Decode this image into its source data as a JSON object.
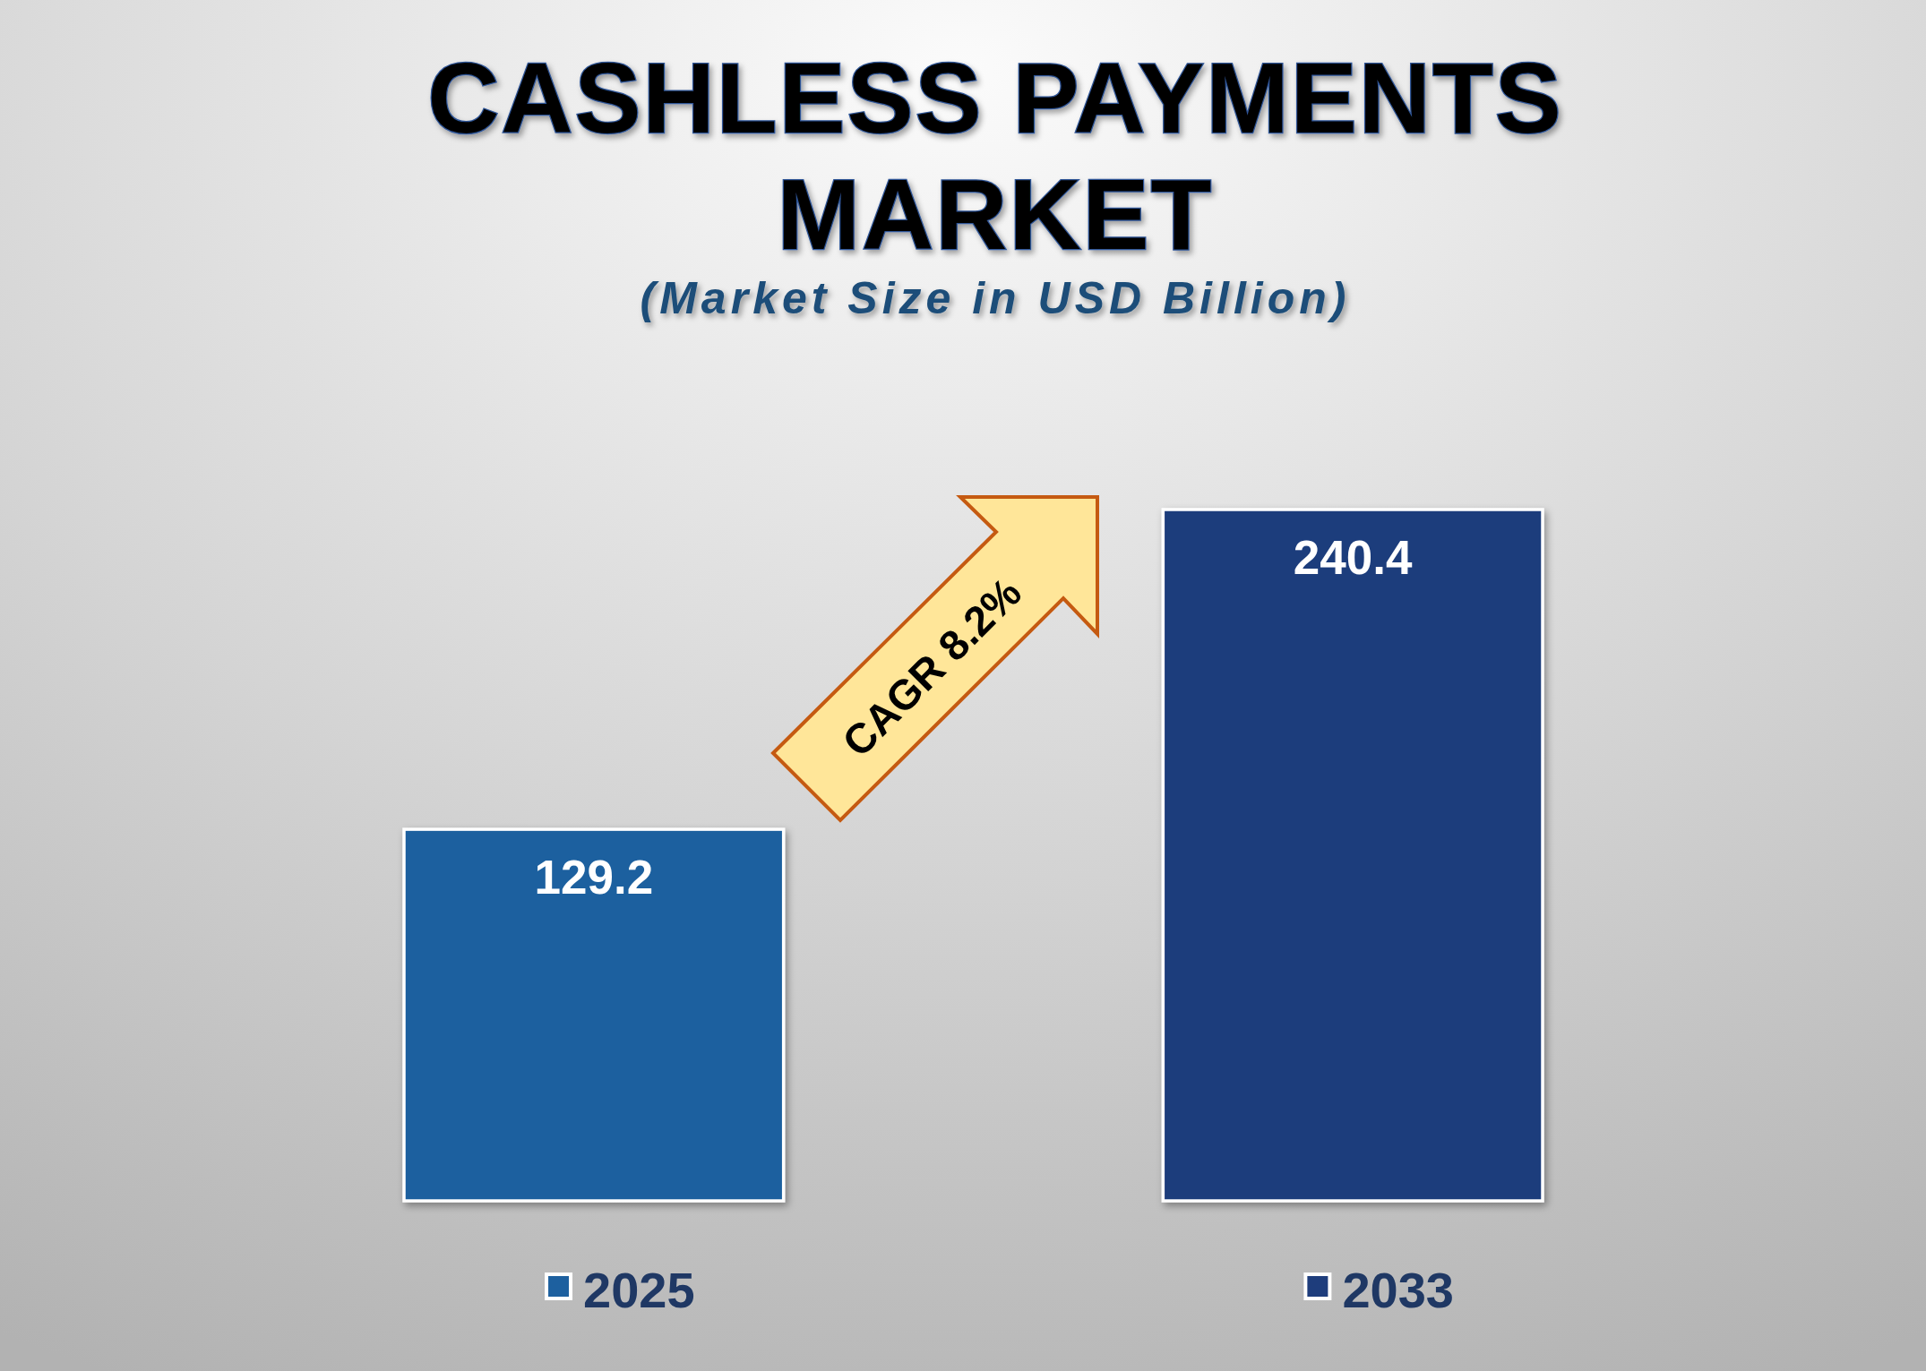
{
  "chart_data": {
    "type": "bar",
    "title": "CASHLESS PAYMENTS MARKET",
    "subtitle": "(Market Size in USD Billion)",
    "categories": [
      "2025",
      "2033"
    ],
    "values": [
      129.2,
      240.4
    ],
    "colors": [
      "#1d609f",
      "#1e3d7c"
    ],
    "data_labels": true,
    "annotations": [
      "CAGR 8.2%"
    ]
  }
}
